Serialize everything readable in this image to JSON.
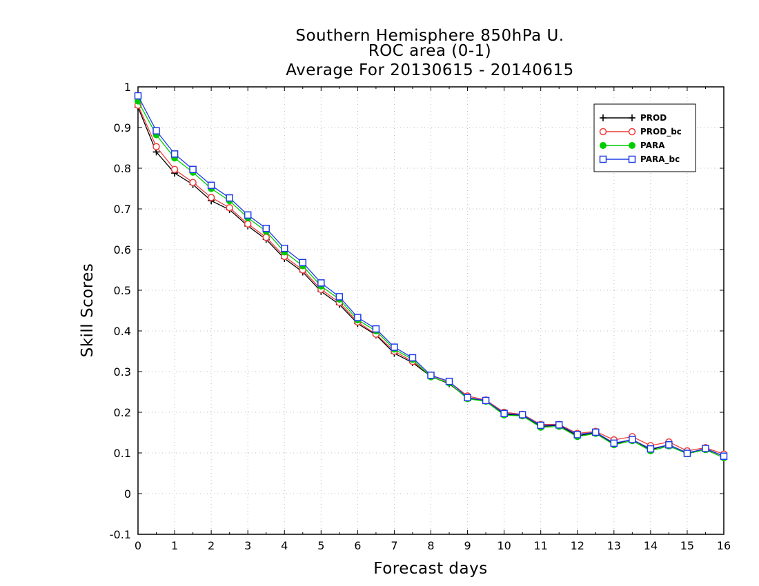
{
  "chart_data": {
    "type": "line",
    "title": "Southern Hemisphere 850hPa U.",
    "subtitle": "ROC area (0-1)",
    "subtitle2": "Average For 20130615 - 20140615",
    "xlabel": "Forecast days",
    "ylabel": "Skill Scores",
    "xlim": [
      0,
      16
    ],
    "ylim": [
      -0.1,
      1
    ],
    "xticks": [
      "0",
      "1",
      "2",
      "3",
      "4",
      "5",
      "6",
      "7",
      "8",
      "9",
      "10",
      "11",
      "12",
      "13",
      "14",
      "15",
      "16"
    ],
    "yticks": [
      "-0.1",
      "0",
      "0.1",
      "0.2",
      "0.3",
      "0.4",
      "0.5",
      "0.6",
      "0.7",
      "0.8",
      "0.9",
      "1"
    ],
    "grid": true,
    "legend_position": "top-right",
    "x": [
      0,
      0.5,
      1,
      1.5,
      2,
      2.5,
      3,
      3.5,
      4,
      4.5,
      5,
      5.5,
      6,
      6.5,
      7,
      7.5,
      8,
      8.5,
      9,
      9.5,
      10,
      10.5,
      11,
      11.5,
      12,
      12.5,
      13,
      13.5,
      14,
      14.5,
      15,
      15.5,
      16
    ],
    "series": [
      {
        "name": "PROD",
        "color": "#000000",
        "marker": "plus",
        "values": [
          0.95,
          0.84,
          0.788,
          0.76,
          0.72,
          0.698,
          0.658,
          0.625,
          0.578,
          0.545,
          0.497,
          0.465,
          0.418,
          0.39,
          0.345,
          0.322,
          0.288,
          0.27,
          0.235,
          0.228,
          0.195,
          0.192,
          0.165,
          0.168,
          0.142,
          0.15,
          0.122,
          0.133,
          0.108,
          0.12,
          0.1,
          0.11,
          0.092
        ]
      },
      {
        "name": "PROD_bc",
        "color": "#f03c3c",
        "marker": "circle-open",
        "values": [
          0.955,
          0.853,
          0.797,
          0.765,
          0.728,
          0.703,
          0.663,
          0.63,
          0.583,
          0.55,
          0.502,
          0.47,
          0.422,
          0.392,
          0.35,
          0.325,
          0.29,
          0.275,
          0.24,
          0.23,
          0.2,
          0.195,
          0.17,
          0.17,
          0.148,
          0.153,
          0.132,
          0.14,
          0.118,
          0.127,
          0.105,
          0.113,
          0.097
        ]
      },
      {
        "name": "PARA",
        "color": "#00cc00",
        "marker": "circle-filled",
        "values": [
          0.965,
          0.882,
          0.825,
          0.79,
          0.75,
          0.72,
          0.678,
          0.645,
          0.594,
          0.56,
          0.51,
          0.478,
          0.427,
          0.4,
          0.355,
          0.33,
          0.287,
          0.272,
          0.233,
          0.227,
          0.193,
          0.191,
          0.163,
          0.165,
          0.14,
          0.148,
          0.12,
          0.13,
          0.105,
          0.117,
          0.098,
          0.108,
          0.088
        ]
      },
      {
        "name": "PARA_bc",
        "color": "#1e3ce6",
        "marker": "square-open",
        "values": [
          0.978,
          0.892,
          0.835,
          0.797,
          0.758,
          0.727,
          0.685,
          0.652,
          0.603,
          0.568,
          0.518,
          0.484,
          0.433,
          0.405,
          0.36,
          0.334,
          0.291,
          0.276,
          0.236,
          0.229,
          0.197,
          0.194,
          0.168,
          0.169,
          0.145,
          0.151,
          0.124,
          0.133,
          0.11,
          0.12,
          0.099,
          0.111,
          0.092
        ]
      }
    ]
  }
}
